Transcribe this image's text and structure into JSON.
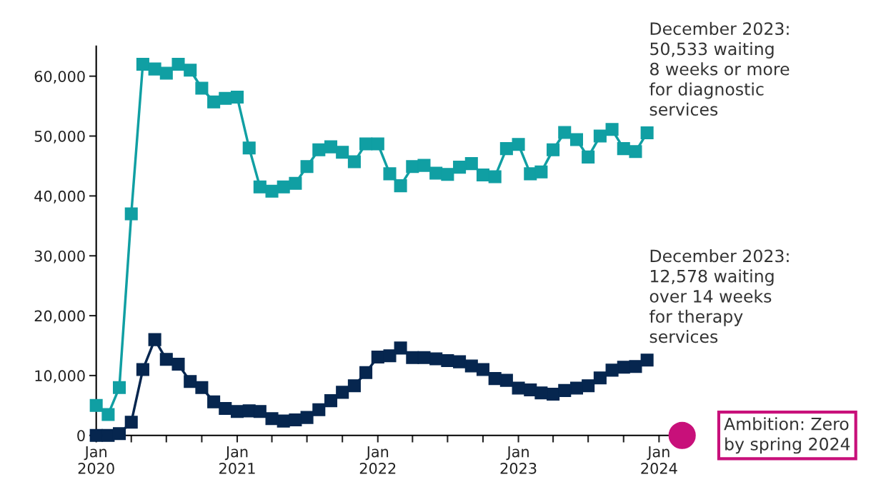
{
  "chart_data": {
    "type": "line",
    "marker": "square",
    "line_style": "solid",
    "grid": false,
    "x": [
      "2020-01",
      "2020-02",
      "2020-03",
      "2020-04",
      "2020-05",
      "2020-06",
      "2020-07",
      "2020-08",
      "2020-09",
      "2020-10",
      "2020-11",
      "2020-12",
      "2021-01",
      "2021-02",
      "2021-03",
      "2021-04",
      "2021-05",
      "2021-06",
      "2021-07",
      "2021-08",
      "2021-09",
      "2021-10",
      "2021-11",
      "2021-12",
      "2022-01",
      "2022-02",
      "2022-03",
      "2022-04",
      "2022-05",
      "2022-06",
      "2022-07",
      "2022-08",
      "2022-09",
      "2022-10",
      "2022-11",
      "2022-12",
      "2023-01",
      "2023-02",
      "2023-03",
      "2023-04",
      "2023-05",
      "2023-06",
      "2023-07",
      "2023-08",
      "2023-09",
      "2023-10",
      "2023-11",
      "2023-12"
    ],
    "series": [
      {
        "color": "#109fa3",
        "values": [
          5000,
          3500,
          8000,
          37000,
          62000,
          61200,
          60500,
          62000,
          61000,
          58000,
          55700,
          56300,
          56500,
          48000,
          41500,
          40800,
          41500,
          42100,
          44900,
          47700,
          48200,
          47300,
          45700,
          48700,
          48700,
          43700,
          41700,
          44900,
          45100,
          43800,
          43600,
          44800,
          45400,
          43500,
          43200,
          47900,
          48600,
          43700,
          44000,
          47700,
          50600,
          49400,
          46500,
          50000,
          51100,
          47900,
          47400,
          50533
        ]
      },
      {
        "color": "#06264f",
        "values": [
          0,
          0,
          300,
          2200,
          11000,
          16000,
          12700,
          11900,
          9000,
          8000,
          5600,
          4500,
          4000,
          4100,
          4000,
          2800,
          2400,
          2600,
          3000,
          4300,
          5800,
          7200,
          8300,
          10500,
          13100,
          13300,
          14600,
          13000,
          13000,
          12800,
          12500,
          12300,
          11600,
          11000,
          9500,
          9200,
          7900,
          7600,
          7100,
          6900,
          7500,
          7900,
          8300,
          9600,
          10900,
          11400,
          11500,
          12578
        ]
      },
      {
        "type": "scatter",
        "marker": "circle",
        "color": "#c8107a",
        "x": [
          "2024-03"
        ],
        "values": [
          0
        ]
      }
    ],
    "xlim": [
      "2020-01",
      "2024-04"
    ],
    "xticks": [
      {
        "value": "2020-01",
        "label": "Jan\n2020"
      },
      {
        "value": "2020-04",
        "label": null
      },
      {
        "value": "2020-07",
        "label": null
      },
      {
        "value": "2020-10",
        "label": null
      },
      {
        "value": "2021-01",
        "label": "Jan\n2021"
      },
      {
        "value": "2021-04",
        "label": null
      },
      {
        "value": "2021-07",
        "label": null
      },
      {
        "value": "2021-10",
        "label": null
      },
      {
        "value": "2022-01",
        "label": "Jan\n2022"
      },
      {
        "value": "2022-04",
        "label": null
      },
      {
        "value": "2022-07",
        "label": null
      },
      {
        "value": "2022-10",
        "label": null
      },
      {
        "value": "2023-01",
        "label": "Jan\n2023"
      },
      {
        "value": "2023-04",
        "label": null
      },
      {
        "value": "2023-07",
        "label": null
      },
      {
        "value": "2023-10",
        "label": null
      },
      {
        "value": "2024-01",
        "label": "Jan\n2024"
      }
    ],
    "ylim": [
      0,
      65000
    ],
    "yticks": [
      {
        "value": 0,
        "label": "0"
      },
      {
        "value": 10000,
        "label": "10,000"
      },
      {
        "value": 20000,
        "label": "20,000"
      },
      {
        "value": 30000,
        "label": "30,000"
      },
      {
        "value": 40000,
        "label": "40,000"
      },
      {
        "value": 50000,
        "label": "50,000"
      },
      {
        "value": 60000,
        "label": "60,000"
      }
    ],
    "annotations": [
      {
        "text": "December 2023:\n50,533 waiting\n8 weeks or more\nfor diagnostic\nservices",
        "x": "2023-12",
        "y": 50533
      },
      {
        "text": "December 2023:\n12,578 waiting\nover 14 weeks\nfor therapy\nservices",
        "x": "2023-12",
        "y": 12578
      },
      {
        "text": "Ambition: Zero\nby spring 2024",
        "x": "2024-03",
        "y": 0
      }
    ]
  }
}
